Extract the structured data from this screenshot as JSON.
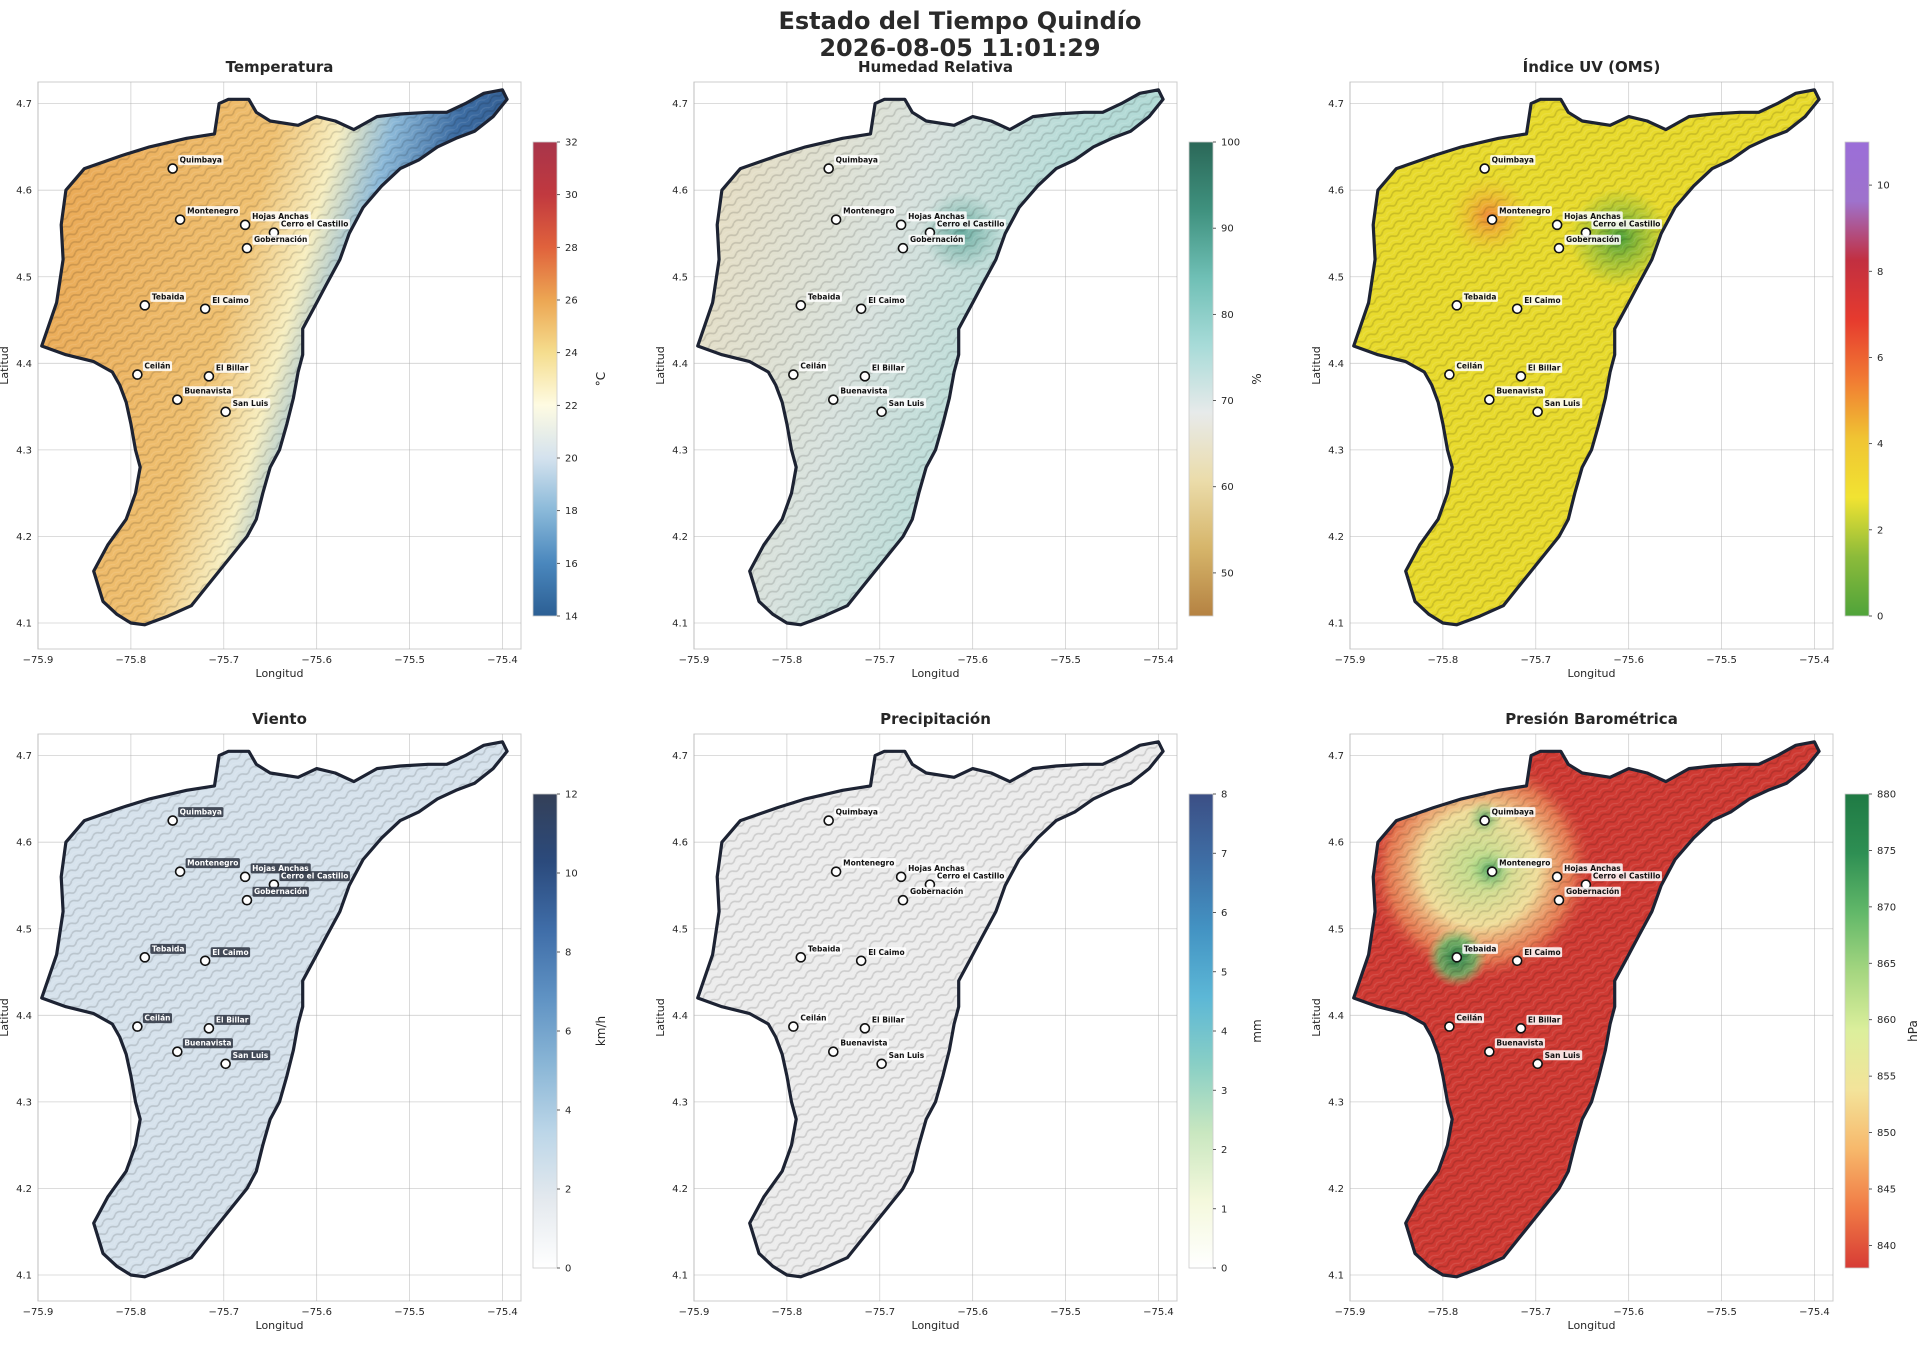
{
  "figure": {
    "title_line1": "Estado del Tiempo Quindío",
    "title_line2": "2026-08-05 11:01:29"
  },
  "axes": {
    "xlabel": "Longitud",
    "ylabel": "Latitud",
    "xlim": [
      -75.9,
      -75.38
    ],
    "ylim": [
      4.07,
      4.725
    ],
    "xticks": [
      -75.9,
      -75.8,
      -75.7,
      -75.6,
      -75.5,
      -75.4
    ],
    "xtick_labels": [
      "−75.9",
      "−75.8",
      "−75.7",
      "−75.6",
      "−75.5",
      "−75.4"
    ],
    "yticks": [
      4.1,
      4.2,
      4.3,
      4.4,
      4.5,
      4.6,
      4.7
    ],
    "ytick_labels": [
      "4.1",
      "4.2",
      "4.3",
      "4.4",
      "4.5",
      "4.6",
      "4.7"
    ]
  },
  "stations": [
    {
      "name": "Quimbaya",
      "lon": -75.755,
      "lat": 4.625
    },
    {
      "name": "Montenegro",
      "lon": -75.747,
      "lat": 4.566
    },
    {
      "name": "Hojas Anchas",
      "lon": -75.677,
      "lat": 4.56
    },
    {
      "name": "Cerro el Castillo",
      "lon": -75.646,
      "lat": 4.551
    },
    {
      "name": "Gobernación",
      "lon": -75.675,
      "lat": 4.533
    },
    {
      "name": "Tebaida",
      "lon": -75.785,
      "lat": 4.467
    },
    {
      "name": "El Caimo",
      "lon": -75.72,
      "lat": 4.463
    },
    {
      "name": "Ceilán",
      "lon": -75.793,
      "lat": 4.387
    },
    {
      "name": "El Billar",
      "lon": -75.716,
      "lat": 4.385
    },
    {
      "name": "Buenavista",
      "lon": -75.75,
      "lat": 4.358
    },
    {
      "name": "San Luis",
      "lon": -75.698,
      "lat": 4.344
    }
  ],
  "panels": [
    {
      "title": "Temperatura",
      "cbar_label": "°C",
      "range": [
        14,
        32
      ],
      "ticks": [
        14,
        16,
        18,
        20,
        22,
        24,
        26,
        28,
        30,
        32
      ],
      "colors": [
        "#2c5f94",
        "#4a87bd",
        "#8ab9d9",
        "#d4e2ee",
        "#fefbe2",
        "#f5dd8e",
        "#eca653",
        "#e0623c",
        "#c1393f",
        "#a8354a"
      ],
      "label_style": "light"
    },
    {
      "title": "Humedad Relativa",
      "cbar_label": "%",
      "range": [
        45,
        100
      ],
      "ticks": [
        50,
        60,
        70,
        80,
        90,
        100
      ],
      "colors": [
        "#b58242",
        "#d6b56a",
        "#ebdcaa",
        "#e7eaea",
        "#a7dbd8",
        "#6fbfb5",
        "#3f917e",
        "#2b6858"
      ],
      "label_style": "light"
    },
    {
      "title": "Índice UV (OMS)",
      "cbar_label": "",
      "range": [
        0,
        11
      ],
      "ticks": [
        0,
        2,
        4,
        6,
        8,
        10
      ],
      "colors": [
        "#4fa33a",
        "#8cbb3a",
        "#f1e332",
        "#f0c433",
        "#f17a33",
        "#e63b2e",
        "#c22f40",
        "#9e72cc",
        "#9b6ed8"
      ],
      "label_style": "light"
    },
    {
      "title": "Viento",
      "cbar_label": "km/h",
      "range": [
        0,
        12
      ],
      "ticks": [
        0,
        2,
        4,
        6,
        8,
        10,
        12
      ],
      "colors": [
        "#ffffff",
        "#e4e9ee",
        "#bcd6e8",
        "#8ab6d6",
        "#5f92c3",
        "#3f6da8",
        "#2b4a7c",
        "#344058"
      ],
      "label_style": "dark"
    },
    {
      "title": "Precipitación",
      "cbar_label": "mm",
      "range": [
        0,
        8
      ],
      "ticks": [
        0,
        1,
        2,
        3,
        4,
        5,
        6,
        7,
        8
      ],
      "colors": [
        "#ffffff",
        "#f4f8dc",
        "#c9e7c0",
        "#89cfc5",
        "#5cb7d6",
        "#4393c3",
        "#3e6ea5",
        "#3c4f85"
      ],
      "label_style": "light"
    },
    {
      "title": "Presión Barométrica",
      "cbar_label": "hPa",
      "range": [
        838,
        880
      ],
      "ticks": [
        840,
        845,
        850,
        855,
        860,
        865,
        870,
        875,
        880
      ],
      "colors": [
        "#d73c35",
        "#f07a45",
        "#f7b86b",
        "#f3e39a",
        "#dcef9c",
        "#a5d680",
        "#62b869",
        "#2e8f53",
        "#1f7a44"
      ],
      "label_style": "light"
    }
  ],
  "colors": {
    "outline": "#1d2333",
    "grid": "#b0b0b0",
    "spine": "#cccccc"
  }
}
